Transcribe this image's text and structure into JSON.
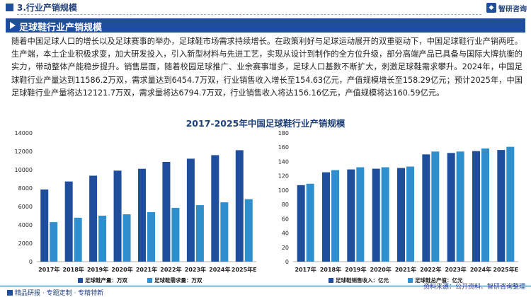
{
  "section_title": "3.行业产销规模",
  "brand_name": "智研咨询",
  "headline": "足球鞋行业产销规模",
  "paragraph": "随着中国足球人口的增长以及足球赛事的举办，足球鞋市场需求持续增长。在政策利好与足球运动展开的双重驱动下，中国足球鞋行业产销两旺。生产端，本土企业积极求变，加大研发投入，引入新型材料与先进工艺，实现从设计到制作的全方位升级，部分高端产品已具备与国际大牌抗衡的实力，带动整体产能稳步提升。销售层面，随着校园足球推广、业余赛事增多，足球人口基数不断扩大，刺激足球鞋需求攀升。2024年，中国足球鞋行业产量达到11586.2万双，需求量达到6454.7万双，行业销售收入增长至154.63亿元，产值规模增长至158.29亿元；预计2025年，中国足球鞋行业产量将达12121.7万双，需求量将达6794.7万双，行业销售收入将达156.16亿元，产值规模将达160.59亿元。",
  "chart_title": "2017-2025年中国足球鞋行业产销规模",
  "footer_left": "精品研报 · 专题定制 · 专精特新",
  "footer_right": "资料来源：公开资料、智研咨询整理",
  "colors": {
    "primary": "#1f4e9c",
    "series_dark": "#1f4e9c",
    "series_light": "#2f8fcc"
  },
  "chart_data": [
    {
      "type": "bar",
      "categories": [
        "2017年",
        "2018年",
        "2019年",
        "2020年",
        "2021年",
        "2022年",
        "2023年",
        "2024年",
        "2025年E"
      ],
      "series": [
        {
          "name": "足球鞋产量：万双",
          "values": [
            7850,
            8720,
            9350,
            9900,
            10100,
            10850,
            11200,
            11586.2,
            12121.7
          ]
        },
        {
          "name": "足球鞋需求量：万双",
          "values": [
            4300,
            4780,
            5000,
            5150,
            5380,
            5850,
            6150,
            6454.7,
            6794.7
          ]
        }
      ],
      "yticks": [
        0,
        2000,
        4000,
        6000,
        8000,
        10000,
        12000,
        14000
      ],
      "ylim": [
        0,
        14000
      ],
      "legend": "bottom"
    },
    {
      "type": "bar",
      "categories": [
        "2017年",
        "2018年",
        "2019年",
        "2020年",
        "2021年",
        "2022年",
        "2023年",
        "2024年",
        "2025年E"
      ],
      "series": [
        {
          "name": "足球鞋销售收入：亿元",
          "values": [
            107,
            125,
            129,
            130,
            131,
            150,
            152,
            154.63,
            156.16
          ]
        },
        {
          "name": "足球鞋总产值：亿元",
          "values": [
            109,
            128,
            132,
            132,
            133,
            154,
            154,
            158.29,
            160.59
          ]
        }
      ],
      "yticks": [
        0,
        20,
        40,
        60,
        80,
        100,
        120,
        140,
        160,
        180
      ],
      "ylim": [
        0,
        180
      ],
      "legend": "bottom"
    }
  ]
}
